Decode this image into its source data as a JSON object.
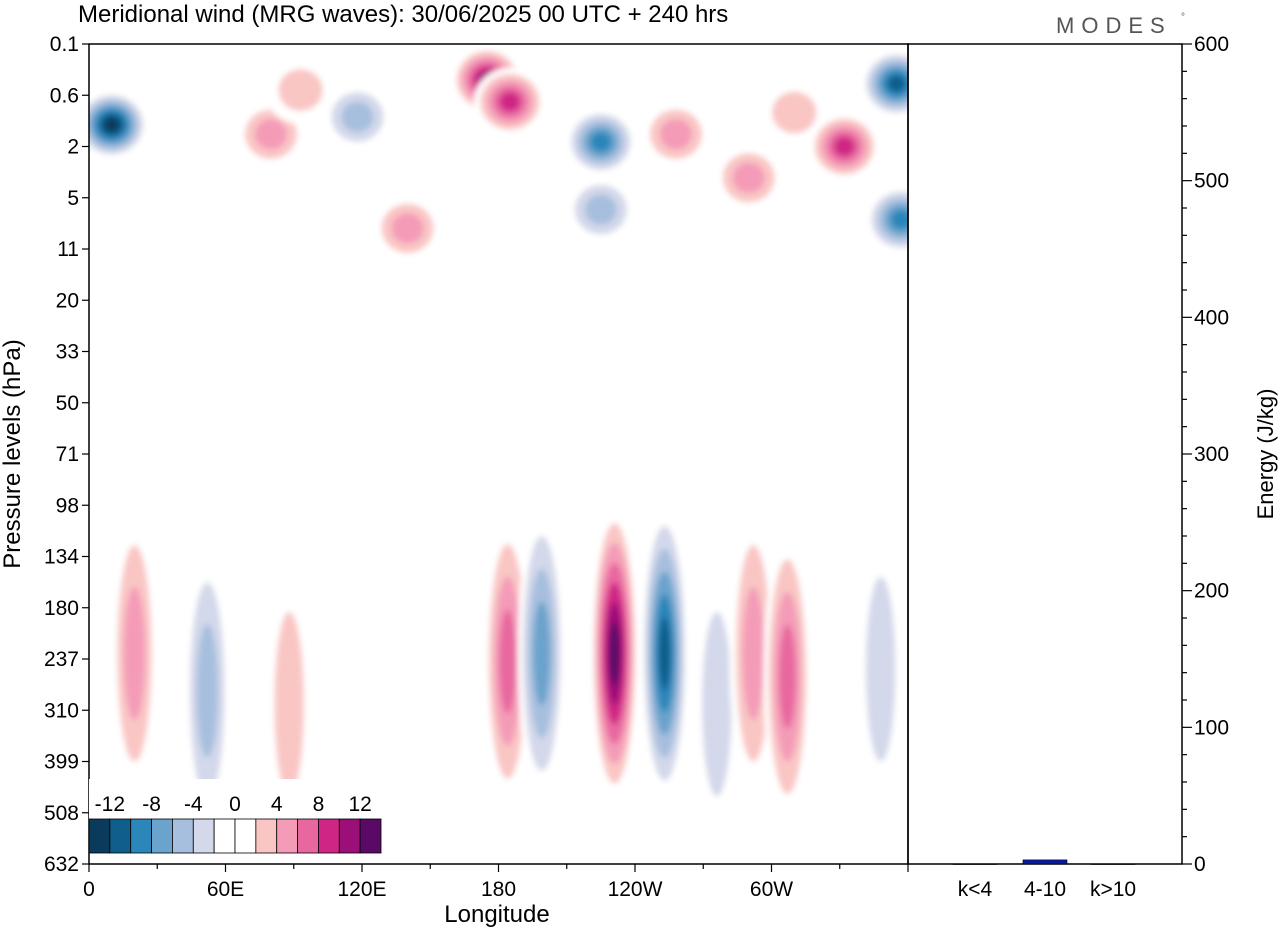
{
  "title": "Meridional wind (MRG waves):  30/06/2025  00 UTC  + 240 hrs",
  "brand": "MODES",
  "brand_mark": "°",
  "chart_data": [
    {
      "type": "heatmap",
      "xlabel": "Longitude",
      "ylabel": "Pressure levels (hPa)",
      "x_ticks": [
        "0",
        "60E",
        "120E",
        "180",
        "120W",
        "60W"
      ],
      "y_ticks": [
        "0.1",
        "0.6",
        "2",
        "5",
        "11",
        "20",
        "33",
        "50",
        "71",
        "98",
        "134",
        "180",
        "237",
        "310",
        "399",
        "508",
        "632"
      ],
      "colorbar": {
        "labels": [
          "-12",
          "-8",
          "-4",
          "0",
          "4",
          "8",
          "12"
        ],
        "levels": [
          -14,
          -12,
          -10,
          -8,
          -6,
          -4,
          -2,
          0,
          2,
          4,
          6,
          8,
          10,
          12,
          14
        ],
        "colors": [
          "#0a3a5c",
          "#0f5e8c",
          "#2b86ba",
          "#6aa3cc",
          "#a7bfde",
          "#d3d8ea",
          "#ffffff",
          "#ffffff",
          "#f9c6c4",
          "#f49bb8",
          "#e8679f",
          "#cf2685",
          "#9c0f79",
          "#5a0a66"
        ]
      },
      "blobs": [
        {
          "lon": 10,
          "p": 1.2,
          "value": -14
        },
        {
          "lon": 80,
          "p": 1.5,
          "value": 6
        },
        {
          "lon": 93,
          "p": 0.5,
          "value": 4
        },
        {
          "lon": 118,
          "p": 1.0,
          "value": -6
        },
        {
          "lon": 175,
          "p": 0.35,
          "value": 12
        },
        {
          "lon": 185,
          "p": 0.7,
          "value": 10
        },
        {
          "lon": 140,
          "p": 8,
          "value": 6
        },
        {
          "lon": 225,
          "p": 1.8,
          "value": -10
        },
        {
          "lon": 225,
          "p": 6,
          "value": -6
        },
        {
          "lon": 258,
          "p": 1.5,
          "value": 6
        },
        {
          "lon": 290,
          "p": 3.5,
          "value": 6
        },
        {
          "lon": 310,
          "p": 0.9,
          "value": 4
        },
        {
          "lon": 332,
          "p": 2,
          "value": 10
        },
        {
          "lon": 355,
          "p": 0.4,
          "value": -12
        },
        {
          "lon": 357,
          "p": 7,
          "value": -10
        },
        {
          "lon": 20,
          "p": 230,
          "value": 6
        },
        {
          "lon": 52,
          "p": 280,
          "value": -6
        },
        {
          "lon": 88,
          "p": 300,
          "value": 4
        },
        {
          "lon": 184,
          "p": 240,
          "value": 8
        },
        {
          "lon": 199,
          "p": 230,
          "value": -8
        },
        {
          "lon": 231,
          "p": 230,
          "value": 14
        },
        {
          "lon": 253,
          "p": 230,
          "value": -12
        },
        {
          "lon": 276,
          "p": 300,
          "value": -4
        },
        {
          "lon": 292,
          "p": 230,
          "value": 6
        },
        {
          "lon": 307,
          "p": 260,
          "value": 8
        },
        {
          "lon": 348,
          "p": 250,
          "value": -4
        }
      ]
    },
    {
      "type": "bar",
      "categories": [
        "k<4",
        "4-10",
        "k>10"
      ],
      "values": [
        0,
        3,
        0
      ],
      "ylabel": "Energy (J/kg)",
      "ylim": [
        0,
        600
      ],
      "y_ticks": [
        "0",
        "100",
        "200",
        "300",
        "400",
        "500",
        "600"
      ],
      "bar_color": "#0a1aa0"
    }
  ]
}
